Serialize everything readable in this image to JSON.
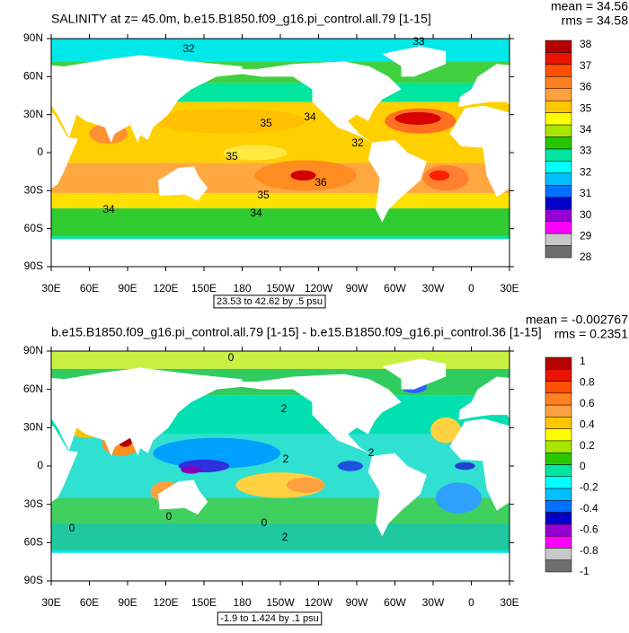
{
  "panels": [
    {
      "title": "SALINITY at z=  45.0m, b.e15.B1850.f09_g16.pi_control.all.79 [1-15]",
      "stats": [
        "mean = 34.56",
        "rms = 34.58"
      ],
      "lat_labels": [
        "90N",
        "60N",
        "30N",
        "0",
        "30S",
        "60S",
        "90S"
      ],
      "lon_labels": [
        "30E",
        "60E",
        "90E",
        "120E",
        "150E",
        "180",
        "150W",
        "120W",
        "90W",
        "60W",
        "30W",
        "0",
        "30E"
      ],
      "range_label": "23.53 to 42.62 by .5 psu",
      "colorbar_labels": [
        "38",
        "37",
        "36",
        "35",
        "34",
        "33",
        "32",
        "31",
        "30",
        "29",
        "28"
      ],
      "contour_labels": [
        "32",
        "33",
        "35",
        "34",
        "35",
        "36",
        "35",
        "34",
        "34",
        "32"
      ]
    },
    {
      "title": "b.e15.B1850.f09_g16.pi_control.all.79 [1-15] - b.e15.B1850.f09_g16.pi_control.36 [1-15]",
      "stats": [
        "mean = -0.002767",
        "rms = 0.2351"
      ],
      "lat_labels": [
        "90N",
        "60N",
        "30N",
        "0",
        "30S",
        "60S",
        "90S"
      ],
      "lon_labels": [
        "30E",
        "60E",
        "90E",
        "120E",
        "150E",
        "180",
        "150W",
        "120W",
        "90W",
        "60W",
        "30W",
        "0",
        "30E"
      ],
      "range_label": "-1.9 to 1.424 by .1 psu",
      "colorbar_labels": [
        "1",
        "0.8",
        "0.6",
        "0.4",
        "0.2",
        "0",
        "-0.2",
        "-0.4",
        "-0.6",
        "-0.8",
        "-1"
      ],
      "contour_labels": [
        "0",
        "2",
        "2",
        "2",
        "0",
        "0",
        "0",
        "2"
      ]
    }
  ],
  "colorbar_colors": [
    "#b40000",
    "#e81400",
    "#ff5000",
    "#ff8020",
    "#ffa040",
    "#ffc800",
    "#ffff00",
    "#a8e600",
    "#28c800",
    "#00e6a0",
    "#00ffff",
    "#00c0ff",
    "#0070ff",
    "#0000c8",
    "#9600d2",
    "#ff00ff",
    "#c8c8c8",
    "#6e6e6e"
  ]
}
